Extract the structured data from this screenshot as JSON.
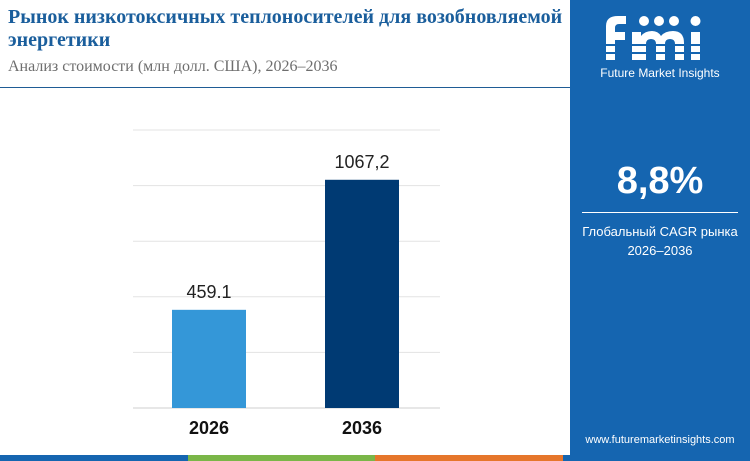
{
  "header": {
    "title": "Рынок низкотоксичных теплоносителей для возобновляемой энергетики",
    "subtitle": "Анализ стоимости (млн долл. США), 2026–2036"
  },
  "colors": {
    "title": "#1a5e9c",
    "sidebar": "#1565b0",
    "bar_2026": "#3497d8",
    "bar_2036": "#003a73",
    "gridline": "#e3e3e3",
    "strip": [
      "#1565b0",
      "#7ab648",
      "#e6762b",
      "#1565b0"
    ]
  },
  "chart_data": {
    "type": "bar",
    "categories": [
      "2026",
      "2036"
    ],
    "values": [
      459.1,
      1067.2
    ],
    "value_labels": [
      "459.1",
      "1067,2"
    ],
    "title": "",
    "xlabel": "",
    "ylabel": "",
    "ylim": [
      0,
      1300
    ],
    "grid": true,
    "legend": "none"
  },
  "sidebar": {
    "logo_icon": "fmi-logo-icon",
    "brand": "Future Market Insights",
    "cagr_value": "8,8%",
    "cagr_label_line1": "Глобальный CAGR рынка",
    "cagr_label_line2": "2026–2036",
    "website": "www.futuremarketinsights.com"
  }
}
